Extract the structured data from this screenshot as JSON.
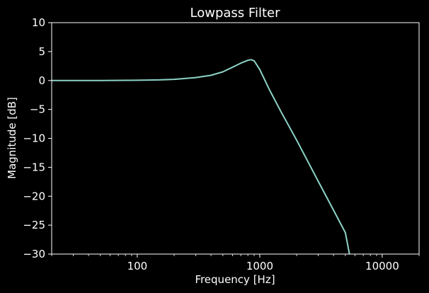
{
  "chart_data": {
    "type": "line",
    "title": "Lowpass Filter",
    "xlabel": "Frequency [Hz]",
    "ylabel": "Magnitude [dB]",
    "xscale": "log",
    "xlim": [
      20,
      20000
    ],
    "ylim": [
      -30,
      10
    ],
    "grid": false,
    "background": "#000000",
    "axis_color": "#ffffff",
    "xticks": [
      {
        "value": 100,
        "label": "100"
      },
      {
        "value": 1000,
        "label": "1000"
      },
      {
        "value": 10000,
        "label": "10000"
      }
    ],
    "yticks": [
      {
        "value": 10,
        "label": "10"
      },
      {
        "value": 5,
        "label": "5"
      },
      {
        "value": 0,
        "label": "0"
      },
      {
        "value": -5,
        "label": "−5"
      },
      {
        "value": -10,
        "label": "−10"
      },
      {
        "value": -15,
        "label": "−15"
      },
      {
        "value": -20,
        "label": "−20"
      },
      {
        "value": -25,
        "label": "−25"
      },
      {
        "value": -30,
        "label": "−30"
      }
    ],
    "series": [
      {
        "color": "#8dd3c7",
        "x": [
          20,
          50,
          100,
          150,
          200,
          300,
          400,
          500,
          600,
          700,
          800,
          850,
          900,
          1000,
          1200,
          1500,
          2000,
          3000,
          4000,
          5000,
          5400
        ],
        "y": [
          0,
          0,
          0.05,
          0.1,
          0.2,
          0.5,
          0.9,
          1.5,
          2.3,
          3.0,
          3.5,
          3.6,
          3.4,
          1.9,
          -1.6,
          -5.5,
          -10.3,
          -17.4,
          -22.4,
          -26.3,
          -30
        ]
      }
    ]
  }
}
